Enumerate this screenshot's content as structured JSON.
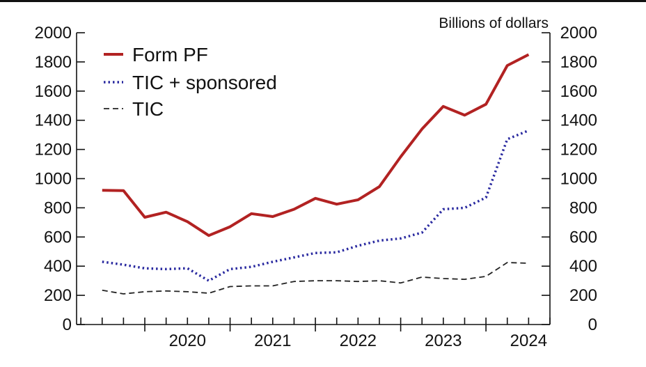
{
  "chart_data": {
    "type": "line",
    "unit_label": "Billions of dollars",
    "x": [
      2019.5,
      2019.75,
      2020.0,
      2020.25,
      2020.5,
      2020.75,
      2021.0,
      2021.25,
      2021.5,
      2021.75,
      2022.0,
      2022.25,
      2022.5,
      2022.75,
      2023.0,
      2023.25,
      2023.5,
      2023.75,
      2024.0,
      2024.25,
      2024.5
    ],
    "xlim": [
      2019.2,
      2024.75
    ],
    "ylim": [
      0,
      2000
    ],
    "x_ticks": [
      {
        "value": 2020,
        "label": "2020"
      },
      {
        "value": 2021,
        "label": "2021"
      },
      {
        "value": 2022,
        "label": "2022"
      },
      {
        "value": 2023,
        "label": "2023"
      },
      {
        "value": 2024,
        "label": "2024"
      }
    ],
    "y_ticks": [
      0,
      200,
      400,
      600,
      800,
      1000,
      1200,
      1400,
      1600,
      1800,
      2000
    ],
    "y_tick_labels": [
      "0",
      "200",
      "400",
      "600",
      "800",
      "1000",
      "1200",
      "1400",
      "1600",
      "1800",
      "2000"
    ],
    "grid": false,
    "legend_position": "top-left",
    "series": [
      {
        "name": "Form PF",
        "style": "solid",
        "color": "#b22222",
        "values": [
          920,
          918,
          735,
          770,
          705,
          610,
          670,
          760,
          740,
          790,
          865,
          825,
          855,
          945,
          1150,
          1340,
          1495,
          1435,
          1510,
          1775,
          1850
        ]
      },
      {
        "name": "TIC + sponsored",
        "style": "dotted",
        "color": "#2a2aa0",
        "values": [
          430,
          410,
          385,
          380,
          385,
          300,
          380,
          395,
          430,
          460,
          490,
          495,
          540,
          575,
          590,
          630,
          790,
          800,
          870,
          1270,
          1330
        ]
      },
      {
        "name": "TIC",
        "style": "dashed",
        "color": "#222222",
        "values": [
          235,
          210,
          225,
          230,
          225,
          215,
          260,
          265,
          265,
          295,
          300,
          300,
          295,
          300,
          285,
          325,
          315,
          310,
          330,
          425,
          420
        ]
      }
    ]
  }
}
